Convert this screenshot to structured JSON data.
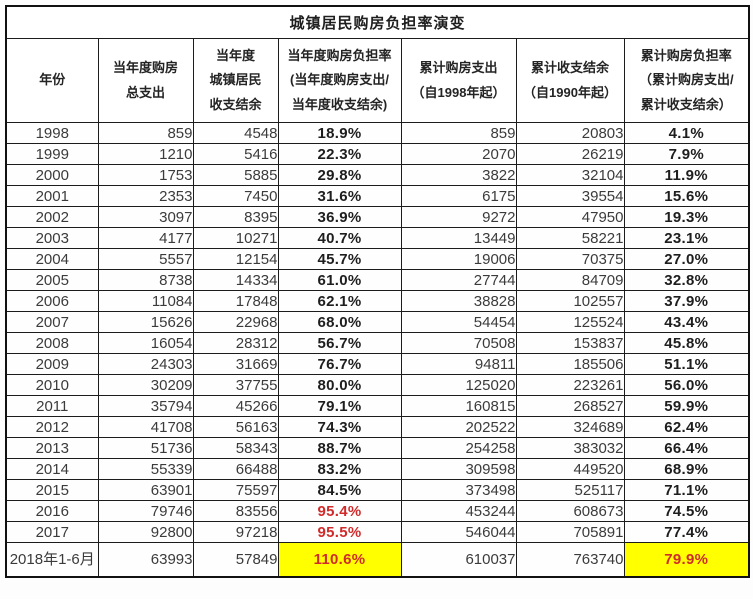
{
  "table": {
    "title": "城镇居民购房负担率演变",
    "headers": [
      "年份",
      "当年度购房\n总支出",
      "当年度\n城镇居民\n收支结余",
      "当年度购房负担率\n(当年度购房支出/\n当年度收支结余)",
      "累计购房支出\n（自1998年起）",
      "累计收支结余\n（自1990年起）",
      "累计购房负担率\n（累计购房支出/\n累计收支结余）"
    ],
    "rows": [
      [
        "1998",
        "859",
        "4548",
        "18.9%",
        "859",
        "20803",
        "4.1%"
      ],
      [
        "1999",
        "1210",
        "5416",
        "22.3%",
        "2070",
        "26219",
        "7.9%"
      ],
      [
        "2000",
        "1753",
        "5885",
        "29.8%",
        "3822",
        "32104",
        "11.9%"
      ],
      [
        "2001",
        "2353",
        "7450",
        "31.6%",
        "6175",
        "39554",
        "15.6%"
      ],
      [
        "2002",
        "3097",
        "8395",
        "36.9%",
        "9272",
        "47950",
        "19.3%"
      ],
      [
        "2003",
        "4177",
        "10271",
        "40.7%",
        "13449",
        "58221",
        "23.1%"
      ],
      [
        "2004",
        "5557",
        "12154",
        "45.7%",
        "19006",
        "70375",
        "27.0%"
      ],
      [
        "2005",
        "8738",
        "14334",
        "61.0%",
        "27744",
        "84709",
        "32.8%"
      ],
      [
        "2006",
        "11084",
        "17848",
        "62.1%",
        "38828",
        "102557",
        "37.9%"
      ],
      [
        "2007",
        "15626",
        "22968",
        "68.0%",
        "54454",
        "125524",
        "43.4%"
      ],
      [
        "2008",
        "16054",
        "28312",
        "56.7%",
        "70508",
        "153837",
        "45.8%"
      ],
      [
        "2009",
        "24303",
        "31669",
        "76.7%",
        "94811",
        "185506",
        "51.1%"
      ],
      [
        "2010",
        "30209",
        "37755",
        "80.0%",
        "125020",
        "223261",
        "56.0%"
      ],
      [
        "2011",
        "35794",
        "45266",
        "79.1%",
        "160815",
        "268527",
        "59.9%"
      ],
      [
        "2012",
        "41708",
        "56163",
        "74.3%",
        "202522",
        "324689",
        "62.4%"
      ],
      [
        "2013",
        "51736",
        "58343",
        "88.7%",
        "254258",
        "383032",
        "66.4%"
      ],
      [
        "2014",
        "55339",
        "66488",
        "83.2%",
        "309598",
        "449520",
        "68.9%"
      ],
      [
        "2015",
        "63901",
        "75597",
        "84.5%",
        "373498",
        "525117",
        "71.1%"
      ],
      [
        "2016",
        "79746",
        "83556",
        "95.4%",
        "453244",
        "608673",
        "74.5%"
      ],
      [
        "2017",
        "92800",
        "97218",
        "95.5%",
        "546044",
        "705891",
        "77.4%"
      ],
      [
        "2018年1-6月",
        "63993",
        "57849",
        "110.6%",
        "610037",
        "763740",
        "79.9%"
      ]
    ],
    "styles": {
      "red_annual_rate_rows": [
        18,
        19,
        20
      ],
      "red_cumulative_rate_rows": [
        20
      ],
      "highlight_row": 20,
      "highlight_columns": [
        3,
        6
      ]
    }
  },
  "colors": {
    "alert_red": "#d02b2b",
    "highlight_yellow": "#ffff00",
    "grid_line": "#1c1c1c"
  }
}
